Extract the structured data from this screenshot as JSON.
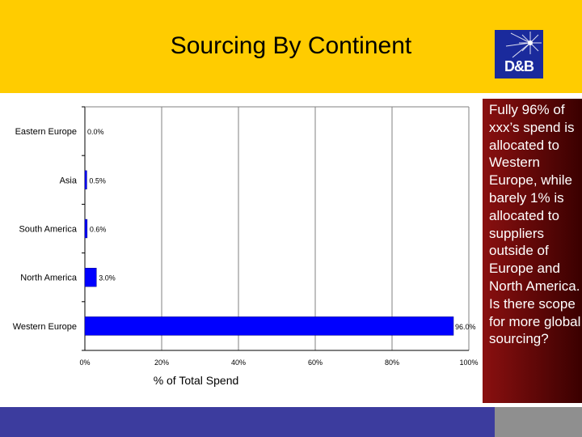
{
  "header": {
    "title": "Sourcing By Continent",
    "logo_text": "D&B",
    "background": "#FFCC00"
  },
  "callout": {
    "text": "Fully 96% of xxx’s spend is allocated to Western Europe, while barely 1% is allocated to suppliers outside of Europe and North America. Is there scope for more global sourcing?",
    "background": "#6b0a0a"
  },
  "footer": {
    "left_color": "#3c3c9e",
    "right_color": "#8f8f8f"
  },
  "chart_data": {
    "type": "bar",
    "orientation": "horizontal",
    "categories": [
      "Eastern Europe",
      "Asia",
      "South America",
      "North America",
      "Western Europe"
    ],
    "values": [
      0.0,
      0.5,
      0.6,
      3.0,
      96.0
    ],
    "data_labels": [
      "0.0%",
      "0.5%",
      "0.6%",
      "3.0%",
      "96.0%"
    ],
    "xlabel": "% of Total Spend",
    "ylabel": "",
    "xlim": [
      0,
      100
    ],
    "xticks": [
      0,
      20,
      40,
      60,
      80,
      100
    ],
    "xtick_labels": [
      "0%",
      "20%",
      "40%",
      "60%",
      "80%",
      "100%"
    ],
    "grid": true,
    "bar_color": "#0000FF"
  }
}
